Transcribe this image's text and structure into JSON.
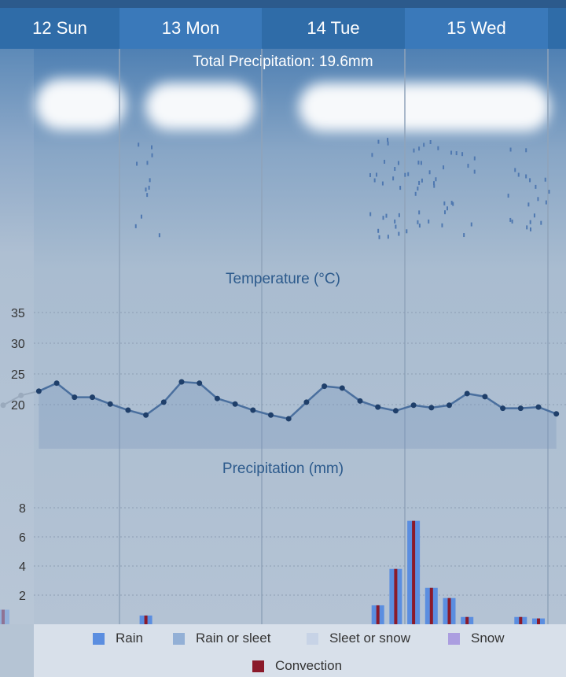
{
  "tabs": [
    "12 Sun",
    "13 Mon",
    "14 Tue",
    "15 Wed"
  ],
  "total_precip": "Total Precipitation: 19.6mm",
  "colors": {
    "rain": "#5b8ee0",
    "rain_or_sleet": "#93b0d6",
    "sleet_or_snow": "#c7d3e6",
    "snow": "#ab9ee0",
    "convection": "#8b1a2a",
    "temp_line": "#1f3f6a"
  },
  "legend": {
    "rain": "Rain",
    "rain_or_sleet": "Rain or sleet",
    "sleet_or_snow": "Sleet or snow",
    "snow": "Snow",
    "convection": "Convection"
  },
  "chart_data": [
    {
      "type": "line",
      "title": "Temperature (°C)",
      "yticks": [
        "35",
        "30",
        "25",
        "20"
      ],
      "ylim": [
        15,
        35
      ],
      "grid": true,
      "x_step": "3h",
      "values": [
        19.9,
        21.5,
        22.2,
        23.5,
        21.2,
        21.2,
        20.1,
        19.1,
        18.3,
        20.4,
        23.7,
        23.5,
        21.0,
        20.1,
        19.1,
        18.3,
        17.7,
        20.4,
        23.0,
        22.7,
        20.6,
        19.6,
        19.0,
        19.9,
        19.5,
        19.9,
        21.8,
        21.3,
        19.4,
        19.4,
        19.6,
        18.5
      ]
    },
    {
      "type": "bar",
      "title": "Precipitation (mm)",
      "yticks": [
        "8",
        "6",
        "4",
        "2"
      ],
      "ylim": [
        0,
        8
      ],
      "grid": true,
      "x_step": "3h",
      "values": [
        1.0,
        0,
        0,
        0,
        0,
        0,
        0,
        0,
        0.6,
        0,
        0,
        0,
        0,
        0,
        0,
        0,
        0,
        0,
        0,
        0,
        0,
        1.3,
        3.8,
        7.1,
        2.5,
        1.8,
        0.5,
        0,
        0,
        0.5,
        0.4,
        0
      ],
      "convection": true
    }
  ]
}
